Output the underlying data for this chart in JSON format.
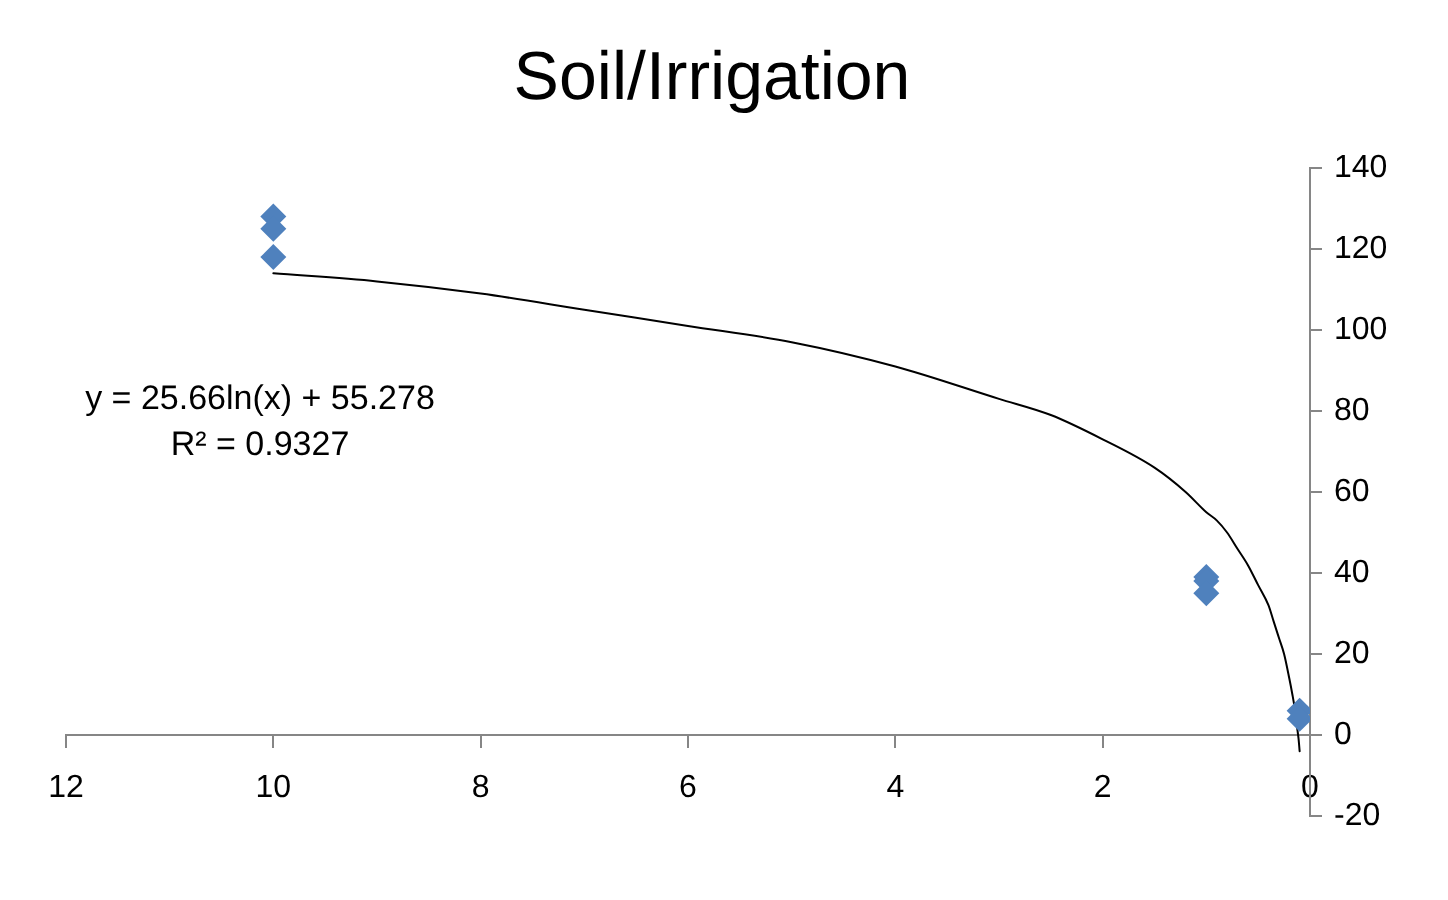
{
  "chart_data": {
    "type": "scatter",
    "title": "Soil/Irrigation",
    "series": [
      {
        "type": "scatter",
        "color": "#4f81bd",
        "x": [
          10,
          10,
          10,
          1,
          1,
          1,
          0.1,
          0.1
        ],
        "values": [
          128,
          125,
          118,
          39,
          38,
          35,
          6,
          4
        ]
      },
      {
        "type": "line",
        "color": "#000000",
        "marker": "none",
        "x": [
          10,
          9,
          8,
          7,
          6,
          5,
          4,
          3,
          2.5,
          2,
          1.5,
          1.2,
          1,
          0.9,
          0.8,
          0.7,
          0.6,
          0.5,
          0.4,
          0.35,
          0.3,
          0.25,
          0.2,
          0.17,
          0.15,
          0.12,
          0.11,
          0.1
        ],
        "values": [
          114,
          112,
          109,
          105,
          101,
          97,
          91,
          83,
          79,
          73,
          66,
          60,
          55,
          53,
          50,
          46,
          42,
          37,
          32,
          28,
          24,
          20,
          14,
          10,
          7,
          1,
          -1,
          -4
        ]
      }
    ],
    "xlim": [
      12,
      0
    ],
    "xticks": [
      12,
      10,
      8,
      6,
      4,
      2,
      0
    ],
    "ylim": [
      -20,
      140
    ],
    "yticks": [
      -20,
      0,
      20,
      40,
      60,
      80,
      100,
      120,
      140
    ],
    "marker": "diamond",
    "grid": false,
    "legend": false,
    "annotations": [
      "y = 25.66ln(x) + 55.278",
      "R² = 0.9327"
    ]
  }
}
